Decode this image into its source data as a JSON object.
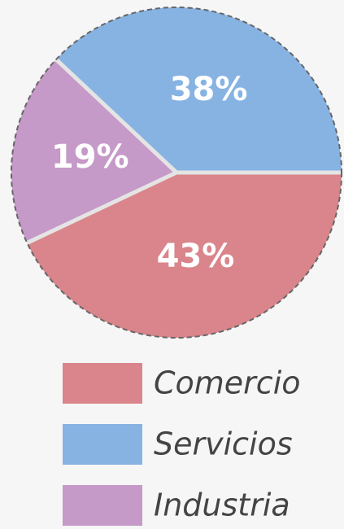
{
  "chart_data": {
    "type": "pie",
    "categories": [
      "Comercio",
      "Servicios",
      "Industria"
    ],
    "values": [
      43,
      38,
      19
    ],
    "value_labels": [
      "43%",
      "38%",
      "19%"
    ],
    "colors": [
      "#d9858b",
      "#87b3e3",
      "#c599c8"
    ],
    "startangle": 205.2,
    "direction": "counterclockwise",
    "legend": "bottom"
  }
}
